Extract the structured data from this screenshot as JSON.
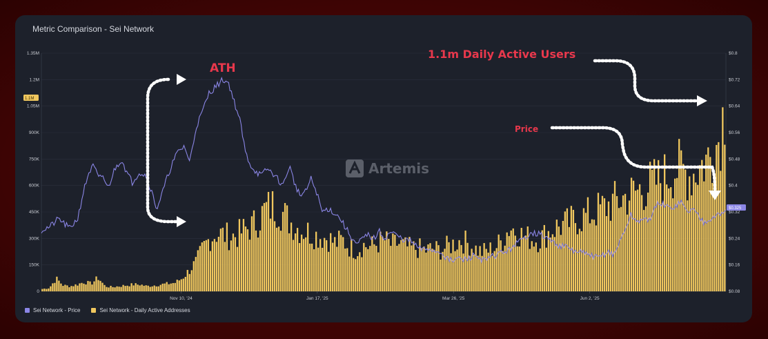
{
  "card": {
    "title": "Metric Comparison - Sei Network"
  },
  "watermark": {
    "text": "Artemis",
    "icon": "artemis-logo-icon"
  },
  "annotations": {
    "ath": "ATH",
    "dau": "1.1m Daily Active Users",
    "price": "Price"
  },
  "colors": {
    "bars": "#f0c75e",
    "price_line": "#8b86e6",
    "annotation": "#e8384c",
    "background": "#1d212b"
  },
  "chart_data": {
    "type": "bar+line",
    "title": "Metric Comparison - Sei Network",
    "x_ticks": [
      "Nov 10, '24",
      "Jan 17, '25",
      "Mar 26, '25",
      "Jun 2, '25"
    ],
    "left_axis": {
      "ticks": [
        "0",
        "150K",
        "300K",
        "450K",
        "600K",
        "750K",
        "900K",
        "1.05M",
        "1.2M",
        "1.35M"
      ],
      "ylim": [
        0,
        1350000
      ],
      "badge": "1.1M"
    },
    "right_axis": {
      "ticks": [
        "$0.08",
        "$0.16",
        "$0.24",
        "$0.32",
        "$0.4",
        "$0.48",
        "$0.56",
        "$0.64",
        "$0.72",
        "$0.8"
      ],
      "ylim": [
        0.08,
        0.8
      ],
      "badge": "$0.325"
    },
    "legend_position": "bottom-left",
    "series": [
      {
        "name": "Sei Network - Price",
        "kind": "line",
        "axis": "right",
        "color": "#8b86e6",
        "points": [
          [
            0,
            0.265
          ],
          [
            12,
            0.275
          ],
          [
            25,
            0.3
          ],
          [
            40,
            0.27
          ],
          [
            52,
            0.3
          ],
          [
            60,
            0.38
          ],
          [
            68,
            0.44
          ],
          [
            75,
            0.46
          ],
          [
            82,
            0.42
          ],
          [
            88,
            0.43
          ],
          [
            95,
            0.39
          ],
          [
            105,
            0.45
          ],
          [
            115,
            0.48
          ],
          [
            122,
            0.44
          ],
          [
            130,
            0.41
          ],
          [
            140,
            0.44
          ],
          [
            150,
            0.43
          ],
          [
            158,
            0.38
          ],
          [
            165,
            0.33
          ],
          [
            172,
            0.37
          ],
          [
            178,
            0.41
          ],
          [
            186,
            0.46
          ],
          [
            195,
            0.5
          ],
          [
            205,
            0.52
          ],
          [
            212,
            0.47
          ],
          [
            222,
            0.58
          ],
          [
            230,
            0.62
          ],
          [
            240,
            0.68
          ],
          [
            250,
            0.7
          ],
          [
            260,
            0.72
          ],
          [
            268,
            0.71
          ],
          [
            278,
            0.64
          ],
          [
            285,
            0.59
          ],
          [
            292,
            0.5
          ],
          [
            300,
            0.46
          ],
          [
            308,
            0.44
          ],
          [
            316,
            0.43
          ],
          [
            322,
            0.45
          ],
          [
            330,
            0.44
          ],
          [
            338,
            0.42
          ],
          [
            346,
            0.4
          ],
          [
            355,
            0.46
          ],
          [
            362,
            0.41
          ],
          [
            370,
            0.37
          ],
          [
            378,
            0.38
          ],
          [
            386,
            0.42
          ],
          [
            394,
            0.38
          ],
          [
            402,
            0.32
          ],
          [
            410,
            0.33
          ],
          [
            418,
            0.32
          ],
          [
            428,
            0.3
          ],
          [
            436,
            0.27
          ],
          [
            445,
            0.24
          ],
          [
            452,
            0.22
          ],
          [
            460,
            0.24
          ],
          [
            468,
            0.25
          ],
          [
            476,
            0.24
          ],
          [
            484,
            0.26
          ],
          [
            492,
            0.24
          ],
          [
            500,
            0.26
          ],
          [
            508,
            0.25
          ],
          [
            515,
            0.24
          ],
          [
            522,
            0.235
          ],
          [
            530,
            0.23
          ],
          [
            540,
            0.21
          ],
          [
            548,
            0.205
          ],
          [
            556,
            0.21
          ],
          [
            564,
            0.2
          ],
          [
            572,
            0.2
          ],
          [
            580,
            0.18
          ],
          [
            588,
            0.17
          ],
          [
            596,
            0.18
          ],
          [
            604,
            0.175
          ],
          [
            612,
            0.18
          ],
          [
            620,
            0.19
          ],
          [
            628,
            0.18
          ],
          [
            636,
            0.17
          ],
          [
            644,
            0.185
          ],
          [
            652,
            0.19
          ],
          [
            660,
            0.2
          ],
          [
            668,
            0.2
          ],
          [
            676,
            0.22
          ],
          [
            684,
            0.23
          ],
          [
            692,
            0.24
          ],
          [
            700,
            0.26
          ],
          [
            708,
            0.255
          ],
          [
            716,
            0.25
          ],
          [
            724,
            0.24
          ],
          [
            732,
            0.23
          ],
          [
            740,
            0.22
          ],
          [
            748,
            0.215
          ],
          [
            756,
            0.21
          ],
          [
            764,
            0.2
          ],
          [
            772,
            0.2
          ],
          [
            780,
            0.19
          ],
          [
            788,
            0.19
          ],
          [
            796,
            0.18
          ],
          [
            804,
            0.19
          ],
          [
            812,
            0.2
          ],
          [
            820,
            0.19
          ],
          [
            826,
            0.22
          ],
          [
            832,
            0.25
          ],
          [
            838,
            0.28
          ],
          [
            844,
            0.31
          ],
          [
            852,
            0.29
          ],
          [
            860,
            0.3
          ],
          [
            868,
            0.29
          ],
          [
            876,
            0.32
          ],
          [
            884,
            0.35
          ],
          [
            892,
            0.34
          ],
          [
            900,
            0.33
          ],
          [
            908,
            0.34
          ],
          [
            916,
            0.35
          ],
          [
            924,
            0.32
          ],
          [
            932,
            0.33
          ],
          [
            940,
            0.31
          ],
          [
            948,
            0.29
          ],
          [
            956,
            0.3
          ],
          [
            964,
            0.31
          ],
          [
            972,
            0.31
          ],
          [
            980,
            0.325
          ]
        ]
      },
      {
        "name": "Sei Network - Daily Active Addresses",
        "kind": "bar",
        "axis": "left",
        "color": "#f0c75e",
        "points": [
          [
            0,
            14000
          ],
          [
            10,
            20000
          ],
          [
            20,
            75000
          ],
          [
            30,
            35000
          ],
          [
            40,
            30000
          ],
          [
            50,
            40000
          ],
          [
            60,
            55000
          ],
          [
            70,
            45000
          ],
          [
            80,
            80000
          ],
          [
            90,
            30000
          ],
          [
            100,
            25000
          ],
          [
            110,
            30000
          ],
          [
            120,
            35000
          ],
          [
            130,
            40000
          ],
          [
            140,
            40000
          ],
          [
            150,
            30000
          ],
          [
            160,
            35000
          ],
          [
            170,
            40000
          ],
          [
            180,
            45000
          ],
          [
            190,
            50000
          ],
          [
            200,
            75000
          ],
          [
            210,
            120000
          ],
          [
            220,
            170000
          ],
          [
            230,
            250000
          ],
          [
            240,
            310000
          ],
          [
            250,
            340000
          ],
          [
            260,
            330000
          ],
          [
            270,
            320000
          ],
          [
            280,
            330000
          ],
          [
            290,
            360000
          ],
          [
            300,
            380000
          ],
          [
            310,
            420000
          ],
          [
            320,
            480000
          ],
          [
            330,
            500000
          ],
          [
            340,
            480000
          ],
          [
            350,
            430000
          ],
          [
            360,
            390000
          ],
          [
            370,
            360000
          ],
          [
            380,
            350000
          ],
          [
            390,
            330000
          ],
          [
            400,
            320000
          ],
          [
            410,
            310000
          ],
          [
            420,
            280000
          ],
          [
            430,
            300000
          ],
          [
            440,
            260000
          ],
          [
            450,
            240000
          ],
          [
            460,
            270000
          ],
          [
            470,
            260000
          ],
          [
            480,
            280000
          ],
          [
            490,
            300000
          ],
          [
            500,
            270000
          ],
          [
            510,
            280000
          ],
          [
            520,
            260000
          ],
          [
            530,
            250000
          ],
          [
            540,
            250000
          ],
          [
            550,
            240000
          ],
          [
            560,
            250000
          ],
          [
            570,
            240000
          ],
          [
            580,
            260000
          ],
          [
            590,
            280000
          ],
          [
            600,
            300000
          ],
          [
            610,
            280000
          ],
          [
            620,
            250000
          ],
          [
            630,
            230000
          ],
          [
            640,
            240000
          ],
          [
            650,
            260000
          ],
          [
            660,
            300000
          ],
          [
            670,
            380000
          ],
          [
            680,
            350000
          ],
          [
            690,
            320000
          ],
          [
            700,
            310000
          ],
          [
            710,
            300000
          ],
          [
            720,
            330000
          ],
          [
            730,
            360000
          ],
          [
            740,
            380000
          ],
          [
            750,
            390000
          ],
          [
            760,
            410000
          ],
          [
            770,
            430000
          ],
          [
            780,
            440000
          ],
          [
            790,
            460000
          ],
          [
            800,
            480000
          ],
          [
            810,
            500000
          ],
          [
            820,
            520000
          ],
          [
            830,
            540000
          ],
          [
            840,
            560000
          ],
          [
            850,
            580000
          ],
          [
            860,
            600000
          ],
          [
            870,
            620000
          ],
          [
            880,
            640000
          ],
          [
            890,
            660000
          ],
          [
            900,
            700000
          ],
          [
            910,
            720000
          ],
          [
            920,
            700000
          ],
          [
            930,
            680000
          ],
          [
            940,
            720000
          ],
          [
            950,
            760000
          ],
          [
            960,
            800000
          ],
          [
            970,
            900000
          ],
          [
            978,
            1080000
          ]
        ]
      }
    ]
  }
}
